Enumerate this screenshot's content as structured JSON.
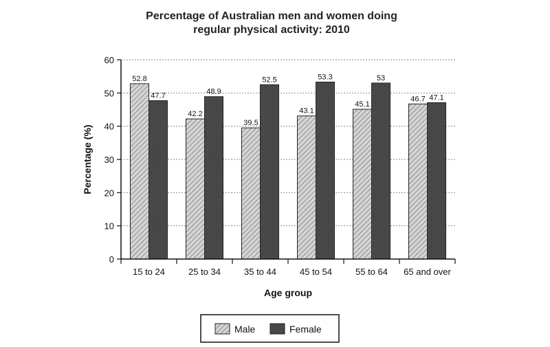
{
  "chart_data": {
    "type": "bar",
    "title": "Percentage of Australian men and women doing",
    "subtitle": "regular physical activity: 2010",
    "xlabel": "Age group",
    "ylabel": "Percentage (%)",
    "ylim": [
      0,
      60
    ],
    "yticks": [
      "0",
      "10",
      "20",
      "30",
      "40",
      "50",
      "60"
    ],
    "grid": true,
    "legend_position": "bottom",
    "categories": [
      "15 to 24",
      "25 to 34",
      "35 to 44",
      "45 to 54",
      "55 to 64",
      "65 and over"
    ],
    "series": [
      {
        "name": "Male",
        "values": [
          52.8,
          42.2,
          39.5,
          43.1,
          45.1,
          46.7
        ],
        "labels": [
          "52.8",
          "42.2",
          "39.5",
          "43.1",
          "45.1",
          "46.7"
        ],
        "color": "#c8c8c8",
        "pattern": "hatched"
      },
      {
        "name": "Female",
        "values": [
          47.7,
          48.9,
          52.5,
          53.3,
          53.0,
          47.1
        ],
        "labels": [
          "47.7",
          "48.9",
          "52.5",
          "53.3",
          "53",
          "47.1"
        ],
        "color": "#4a4a4a",
        "pattern": "solid-dark"
      }
    ]
  }
}
